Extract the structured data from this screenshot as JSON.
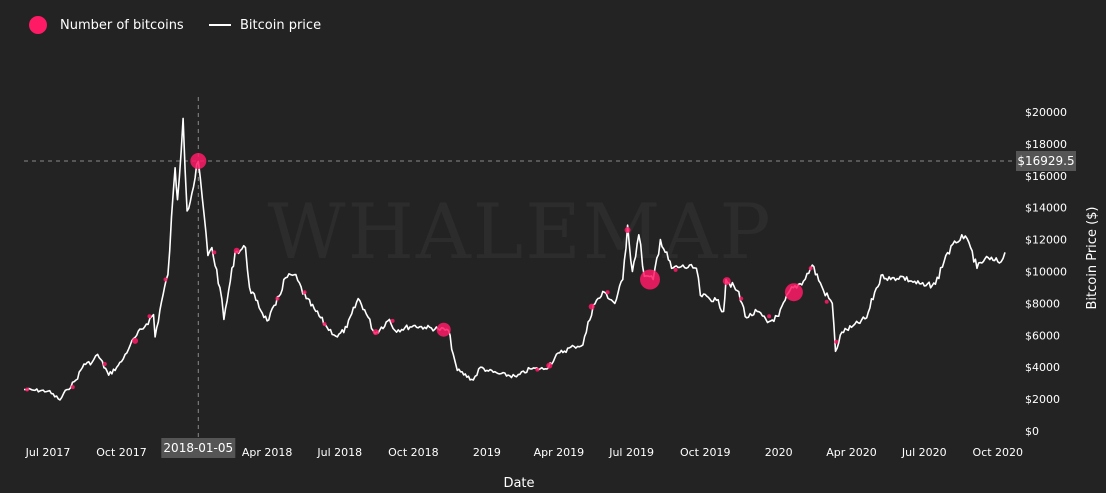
{
  "legend": {
    "bubbles_label": "Number of bitcoins",
    "price_label": "Bitcoin price"
  },
  "watermark": "WHALEMAP",
  "crosshair": {
    "date_label": "2018-01-05",
    "price_label": "$16929.5",
    "date": "2018-01-05",
    "price": 16929.5
  },
  "colors": {
    "background": "#232323",
    "price_line": "#ffffff",
    "bubble": "#ff1a66",
    "crosshair": "#8a8a8a",
    "label_box": "#555555"
  },
  "chart_data": {
    "type": "line",
    "xlabel": "Date",
    "ylabel": "Bitcoin Price ($)",
    "xlim": [
      "2017-06-01",
      "2020-10-20"
    ],
    "ylim": [
      0,
      21000
    ],
    "grid": false,
    "legend_position": "top-left",
    "x_ticks": [
      {
        "date": "2017-07-01",
        "label": "Jul 2017"
      },
      {
        "date": "2017-10-01",
        "label": "Oct 2017"
      },
      {
        "date": "2018-04-01",
        "label": "Apr 2018"
      },
      {
        "date": "2018-07-01",
        "label": "Jul 2018"
      },
      {
        "date": "2018-10-01",
        "label": "Oct 2018"
      },
      {
        "date": "2019-01-01",
        "label": "2019"
      },
      {
        "date": "2019-04-01",
        "label": "Apr 2019"
      },
      {
        "date": "2019-07-01",
        "label": "Jul 2019"
      },
      {
        "date": "2019-10-01",
        "label": "Oct 2019"
      },
      {
        "date": "2020-01-01",
        "label": "2020"
      },
      {
        "date": "2020-04-01",
        "label": "Apr 2020"
      },
      {
        "date": "2020-07-01",
        "label": "Jul 2020"
      },
      {
        "date": "2020-10-01",
        "label": "Oct 2020"
      }
    ],
    "y_ticks": [
      {
        "value": 0,
        "label": "$0"
      },
      {
        "value": 2000,
        "label": "$2000"
      },
      {
        "value": 4000,
        "label": "$4000"
      },
      {
        "value": 6000,
        "label": "$6000"
      },
      {
        "value": 8000,
        "label": "$8000"
      },
      {
        "value": 10000,
        "label": "$10000"
      },
      {
        "value": 12000,
        "label": "$12000"
      },
      {
        "value": 14000,
        "label": "$14000"
      },
      {
        "value": 16000,
        "label": "$16000"
      },
      {
        "value": 18000,
        "label": "$18000"
      },
      {
        "value": 20000,
        "label": "$20000"
      }
    ],
    "series": [
      {
        "name": "Bitcoin price",
        "points": [
          [
            "2017-06-01",
            2600
          ],
          [
            "2017-06-15",
            2550
          ],
          [
            "2017-07-01",
            2500
          ],
          [
            "2017-07-16",
            1950
          ],
          [
            "2017-07-25",
            2600
          ],
          [
            "2017-08-05",
            3200
          ],
          [
            "2017-08-15",
            4200
          ],
          [
            "2017-08-25",
            4300
          ],
          [
            "2017-09-01",
            4800
          ],
          [
            "2017-09-15",
            3500
          ],
          [
            "2017-09-25",
            4000
          ],
          [
            "2017-10-01",
            4350
          ],
          [
            "2017-10-12",
            5400
          ],
          [
            "2017-10-20",
            6000
          ],
          [
            "2017-11-01",
            6700
          ],
          [
            "2017-11-10",
            7300
          ],
          [
            "2017-11-12",
            5900
          ],
          [
            "2017-11-20",
            8100
          ],
          [
            "2017-11-28",
            9800
          ],
          [
            "2017-12-07",
            16500
          ],
          [
            "2017-12-10",
            14500
          ],
          [
            "2017-12-17",
            19600
          ],
          [
            "2017-12-22",
            13800
          ],
          [
            "2017-12-28",
            14900
          ],
          [
            "2018-01-05",
            16900
          ],
          [
            "2018-01-10",
            14600
          ],
          [
            "2018-01-17",
            11000
          ],
          [
            "2018-01-22",
            11500
          ],
          [
            "2018-02-01",
            9000
          ],
          [
            "2018-02-06",
            7000
          ],
          [
            "2018-02-14",
            9400
          ],
          [
            "2018-02-20",
            11200
          ],
          [
            "2018-03-05",
            11500
          ],
          [
            "2018-03-10",
            9000
          ],
          [
            "2018-03-18",
            8200
          ],
          [
            "2018-04-01",
            6900
          ],
          [
            "2018-04-12",
            7900
          ],
          [
            "2018-04-24",
            9600
          ],
          [
            "2018-05-05",
            9800
          ],
          [
            "2018-05-20",
            8300
          ],
          [
            "2018-06-01",
            7500
          ],
          [
            "2018-06-15",
            6500
          ],
          [
            "2018-06-28",
            5900
          ],
          [
            "2018-07-10",
            6500
          ],
          [
            "2018-07-24",
            8300
          ],
          [
            "2018-08-01",
            7600
          ],
          [
            "2018-08-14",
            6100
          ],
          [
            "2018-09-01",
            7000
          ],
          [
            "2018-09-08",
            6300
          ],
          [
            "2018-10-01",
            6600
          ],
          [
            "2018-10-15",
            6500
          ],
          [
            "2018-11-01",
            6400
          ],
          [
            "2018-11-14",
            6300
          ],
          [
            "2018-11-20",
            4800
          ],
          [
            "2018-11-25",
            3800
          ],
          [
            "2018-12-15",
            3200
          ],
          [
            "2018-12-24",
            4000
          ],
          [
            "2019-01-01",
            3800
          ],
          [
            "2019-01-15",
            3600
          ],
          [
            "2019-02-07",
            3400
          ],
          [
            "2019-02-24",
            3900
          ],
          [
            "2019-03-15",
            3900
          ],
          [
            "2019-04-02",
            4900
          ],
          [
            "2019-04-20",
            5300
          ],
          [
            "2019-05-01",
            5400
          ],
          [
            "2019-05-14",
            7900
          ],
          [
            "2019-05-28",
            8700
          ],
          [
            "2019-06-10",
            8000
          ],
          [
            "2019-06-20",
            9500
          ],
          [
            "2019-06-26",
            12900
          ],
          [
            "2019-07-02",
            10000
          ],
          [
            "2019-07-10",
            12300
          ],
          [
            "2019-07-17",
            9700
          ],
          [
            "2019-07-28",
            9500
          ],
          [
            "2019-08-06",
            12000
          ],
          [
            "2019-08-20",
            10200
          ],
          [
            "2019-09-01",
            10300
          ],
          [
            "2019-09-20",
            10200
          ],
          [
            "2019-09-25",
            8500
          ],
          [
            "2019-10-15",
            8200
          ],
          [
            "2019-10-24",
            7500
          ],
          [
            "2019-10-27",
            9500
          ],
          [
            "2019-11-10",
            8800
          ],
          [
            "2019-11-22",
            7100
          ],
          [
            "2019-12-05",
            7500
          ],
          [
            "2019-12-18",
            6800
          ],
          [
            "2020-01-01",
            7200
          ],
          [
            "2020-01-15",
            8800
          ],
          [
            "2020-02-01",
            9400
          ],
          [
            "2020-02-12",
            10400
          ],
          [
            "2020-02-26",
            8800
          ],
          [
            "2020-03-08",
            8000
          ],
          [
            "2020-03-12",
            5000
          ],
          [
            "2020-03-20",
            6200
          ],
          [
            "2020-04-01",
            6500
          ],
          [
            "2020-04-20",
            7100
          ],
          [
            "2020-04-30",
            8700
          ],
          [
            "2020-05-10",
            9800
          ],
          [
            "2020-05-20",
            9500
          ],
          [
            "2020-06-01",
            9700
          ],
          [
            "2020-06-15",
            9400
          ],
          [
            "2020-07-01",
            9100
          ],
          [
            "2020-07-15",
            9200
          ],
          [
            "2020-07-28",
            11000
          ],
          [
            "2020-08-10",
            11800
          ],
          [
            "2020-08-17",
            12300
          ],
          [
            "2020-08-28",
            11500
          ],
          [
            "2020-09-05",
            10200
          ],
          [
            "2020-09-15",
            10800
          ],
          [
            "2020-09-25",
            10700
          ],
          [
            "2020-10-05",
            10600
          ],
          [
            "2020-10-10",
            11200
          ]
        ]
      },
      {
        "name": "Number of bitcoins",
        "type": "scatter",
        "points": [
          {
            "date": "2017-06-05",
            "value": 2600,
            "size": 2
          },
          {
            "date": "2017-08-01",
            "value": 2750,
            "size": 2
          },
          {
            "date": "2017-09-10",
            "value": 4200,
            "size": 2
          },
          {
            "date": "2017-10-18",
            "value": 5650,
            "size": 3
          },
          {
            "date": "2017-11-05",
            "value": 7200,
            "size": 2
          },
          {
            "date": "2017-11-25",
            "value": 9500,
            "size": 2
          },
          {
            "date": "2018-01-05",
            "value": 16930,
            "size": 8
          },
          {
            "date": "2018-01-25",
            "value": 11200,
            "size": 2
          },
          {
            "date": "2018-02-22",
            "value": 11300,
            "size": 3
          },
          {
            "date": "2018-04-14",
            "value": 8300,
            "size": 2
          },
          {
            "date": "2018-05-18",
            "value": 8700,
            "size": 2
          },
          {
            "date": "2018-06-12",
            "value": 6700,
            "size": 2
          },
          {
            "date": "2018-08-15",
            "value": 6200,
            "size": 3
          },
          {
            "date": "2018-09-05",
            "value": 6900,
            "size": 2
          },
          {
            "date": "2018-11-08",
            "value": 6350,
            "size": 7
          },
          {
            "date": "2019-03-05",
            "value": 3850,
            "size": 2
          },
          {
            "date": "2019-03-20",
            "value": 4100,
            "size": 3
          },
          {
            "date": "2019-05-12",
            "value": 7800,
            "size": 3
          },
          {
            "date": "2019-06-01",
            "value": 8700,
            "size": 2
          },
          {
            "date": "2019-06-26",
            "value": 12600,
            "size": 3
          },
          {
            "date": "2019-07-24",
            "value": 9500,
            "size": 10
          },
          {
            "date": "2019-08-25",
            "value": 10100,
            "size": 2
          },
          {
            "date": "2019-10-28",
            "value": 9400,
            "size": 4
          },
          {
            "date": "2019-11-15",
            "value": 8300,
            "size": 2
          },
          {
            "date": "2019-12-20",
            "value": 7200,
            "size": 2
          },
          {
            "date": "2020-01-20",
            "value": 8700,
            "size": 9
          },
          {
            "date": "2020-02-10",
            "value": 10200,
            "size": 2
          },
          {
            "date": "2020-03-01",
            "value": 8100,
            "size": 2
          },
          {
            "date": "2020-03-13",
            "value": 5600,
            "size": 2
          }
        ]
      }
    ]
  }
}
